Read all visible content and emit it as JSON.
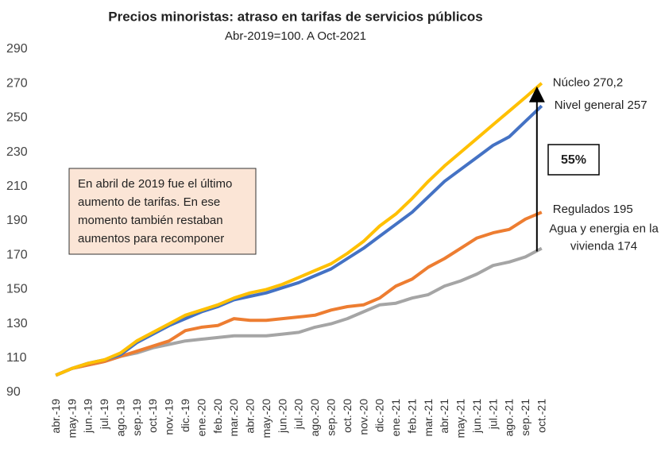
{
  "chart_data": {
    "type": "line",
    "title": "Precios minoristas: atraso en tarifas de servicios públicos",
    "subtitle": "Abr-2019=100. A Oct-2021",
    "categories": [
      "abr.-19",
      "may.-19",
      "jun.-19",
      "jul.-19",
      "ago.-19",
      "sep.-19",
      "oct.-19",
      "nov.-19",
      "dic.-19",
      "ene.-20",
      "feb.-20",
      "mar.-20",
      "abr.-20",
      "may.-20",
      "jun.-20",
      "jul.-20",
      "ago.-20",
      "sep.-20",
      "oct.-20",
      "nov.-20",
      "dic.-20",
      "ene.-21",
      "feb.-21",
      "mar.-21",
      "abr.-21",
      "may.-21",
      "jun.-21",
      "jul.-21",
      "ago.-21",
      "sep.-21",
      "oct.-21"
    ],
    "series": [
      {
        "label": [
          "Núcleo 270,2"
        ],
        "color": "#FFC000",
        "values": [
          100,
          104,
          107,
          109,
          113,
          120,
          125,
          130,
          135,
          138,
          141,
          145,
          148,
          150,
          153,
          157,
          161,
          165,
          171,
          178,
          187,
          194,
          203,
          213,
          222,
          230,
          238,
          246,
          254,
          262,
          270.2
        ]
      },
      {
        "label": [
          "Nivel general 257"
        ],
        "color": "#4472C4",
        "values": [
          100,
          104,
          107,
          109,
          112,
          119,
          124,
          129,
          133,
          137,
          140,
          144,
          146,
          148,
          151,
          154,
          158,
          162,
          168,
          174,
          181,
          188,
          195,
          204,
          213,
          220,
          227,
          234,
          239,
          248,
          257
        ]
      },
      {
        "label": [
          "Regulados 195"
        ],
        "color": "#ED7D31",
        "values": [
          100,
          104,
          106,
          108,
          111,
          114,
          117,
          120,
          126,
          128,
          129,
          133,
          132,
          132,
          133,
          134,
          135,
          138,
          140,
          141,
          145,
          152,
          156,
          163,
          168,
          174,
          180,
          183,
          185,
          191,
          195
        ]
      },
      {
        "label": [
          "Agua y energia en la",
          "vivienda 174"
        ],
        "color": "#A5A5A5",
        "values": [
          100,
          104,
          106,
          108,
          111,
          113,
          116,
          118,
          120,
          121,
          122,
          123,
          123,
          123,
          124,
          125,
          128,
          130,
          133,
          137,
          141,
          142,
          145,
          147,
          152,
          155,
          159,
          164,
          166,
          169,
          174
        ]
      }
    ],
    "ylim": [
      90,
      290
    ],
    "yticks": [
      90,
      110,
      130,
      150,
      170,
      190,
      210,
      230,
      250,
      270,
      290
    ],
    "grid": false,
    "annotations": {
      "note": [
        "En abril de 2019 fue el último",
        "aumento de tarifas. En ese",
        "momento también restaban",
        "aumentos para recomponer"
      ],
      "gap": "55%"
    }
  }
}
